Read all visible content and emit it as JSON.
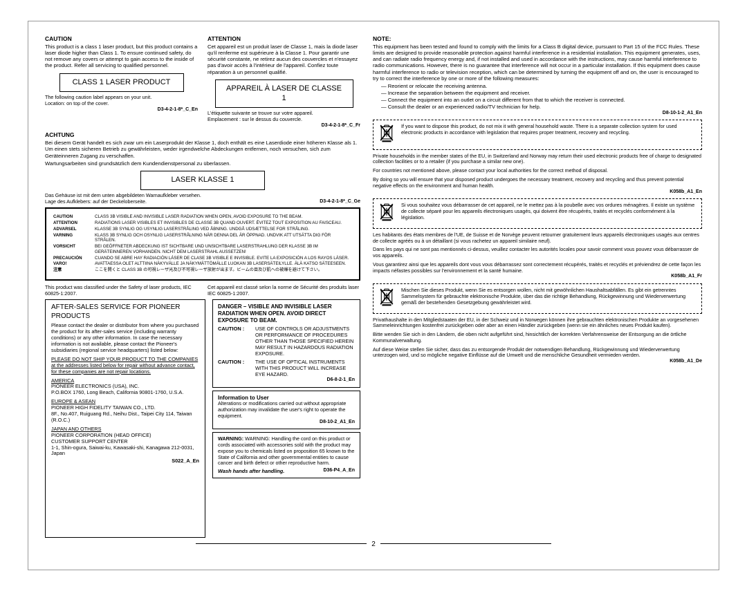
{
  "page_number": "2",
  "left": {
    "caution_en": {
      "title": "CAUTION",
      "body": "This product is a class 1 laser product, but this product contains a laser diode higher than Class 1. To ensure continued safety, do not remove any covers or attempt to gain access to the inside of the product. Refer all servicing to qualified personnel."
    },
    "attention_fr": {
      "title": "ATTENTION",
      "body": "Cet appareil est un produit laser de Classe 1, mais la diode laser qu'il renferme est supérieure à la Classe 1. Pour garantir une sécurité constante, ne retirez aucun des couvercles et n'essayez pas d'avoir accès à l'intérieur de l'appareil. Confiez toute réparation à un personnel qualifié."
    },
    "label_en": "CLASS 1 LASER PRODUCT",
    "label_fr": "APPAREIL À LASER DE CLASSE 1",
    "follow_en": "The following caution label appears on your unit.\nLocation: on top of the cover.",
    "follow_fr": "L'étiquette suivante se trouve sur votre appareil.\nEmplacement : sur le dessus du couvercle.",
    "code_en": "D3-4-2-1-8*_C_En",
    "code_fr": "D3-4-2-1-8*_C_Fr",
    "achtung": {
      "title": "ACHTUNG",
      "body": "Bei diesem Gerät handelt es sich zwar um ein Laserprodukt der Klasse 1, doch enthält es eine Laserdiode einer höheren Klasse als 1. Um einen stets sicheren Betrieb zu gewährleisten, weder irgendwelche Abdeckungen entfernen, noch versuchen, sich zum Geräteinneren Zugang zu verschaffen.",
      "body2": "Wartungsarbeiten sind grundsätzlich dem Kundendienstpersonal zu überlassen."
    },
    "label_ge": "LASER KLASSE 1",
    "follow_ge": "Das Gehäuse ist mit dem unten abgebildeten Warnaufkleber versehen.\nLage des Aufklebers: auf der Deckeloberseite.",
    "code_ge": "D3-4-2-1-8*_C_Ge",
    "multiwarn": [
      {
        "lbl": "CAUTION",
        "txt": "CLASS 3B VISIBLE AND INVISIBLE LASER RADIATION WHEN OPEN, AVOID EXPOSURE TO THE BEAM."
      },
      {
        "lbl": "ATTENTION",
        "txt": "RADIATIONS LASER VISIBLES ET INVISIBLES DE CLASSE 3B QUAND OUVERT. ÉVITEZ TOUT EXPOSITION AU FAISCEAU."
      },
      {
        "lbl": "ADVARSEL",
        "txt": "KLASSE 3B SYNLIG OG USYNLIG LASERSTRÅLING VED ÅBNING. UNDGÅ UDSÆTTELSE FOR STRÅLING."
      },
      {
        "lbl": "VARNING",
        "txt": "KLASS 3B SYNLIG OCH OSYNLIG LASERSTRÅLNING NÄR DENNA DEL ÄR ÖPPNAD. UNDVIK ATT UTSÄTTA DIG FÖR STRÅLEN."
      },
      {
        "lbl": "VORSICHT",
        "txt": "BEI GEÖFFNETER ABDECKUNG IST SICHTBARE UND UNSICHTBARE LASERSTRAHLUNG DER KLASSE 3B IM GERÄTEINNEREN VORHANDEN. NICHT DEM LASERSTRAHL AUSSETZEN!"
      },
      {
        "lbl": "PRECAUCIÓN",
        "txt": "CUANDO SE ABRE HAY RADIACIÓN LÁSER DE CLASE 3B VISIBLE E INVISIBLE. EVITE LA EXPOSICIÓN A LOS RAYOS LÁSER."
      },
      {
        "lbl": "VARO!",
        "txt": "AVATTAESSA OLET ALTTIINA NÄKYVÄLLE JA NÄKYMÄTTÖMÄLLE LUOKAN 3B LASERSÄTEILYLLE. ÄLÄ KATSO SÄTEESEEN."
      },
      {
        "lbl": "注意",
        "txt": "ここを開くと CLASS 3B の可視レーザ光及び不可視レーザ放射が出ます。ビームの目及び肌への被爆を避けて下さい。"
      }
    ],
    "iec_en": "This product was classified under the Safety of laser products, IEC 60825-1:2007.",
    "iec_fr": "Cet appareil est classé selon la norme de Sécurité des produits laser IEC 60825-1:2007.",
    "service": {
      "title": "AFTER-SALES SERVICE FOR PIONEER PRODUCTS",
      "intro": "Please contact the dealer or distributor from where you purchased the product for its after-sales service (including warranty conditions) or any other information. In case the necessary information is not available, please contact the Pioneer's subsidiaries (regional service headquarters) listed below:",
      "noship": "PLEASE DO NOT SHIP YOUR PRODUCT TO THE COMPANIES at the addresses listed below for repair without advance contact, for these companies are not repair locations.",
      "america_h": "AMERICA",
      "america": "PIONEER ELECTRONICS (USA), INC.\nP.O.BOX 1760, Long Beach, California 90801-1760, U.S.A.",
      "europe_h": "EUROPE & ASEAN",
      "europe": "PIONEER HIGH FIDELITY TAIWAN CO., LTD.\n8F., No.407, Ruiguang Rd., Neihu Dist., Taipei City 114, Taiwan (R.O.C.)",
      "japan_h": "JAPAN AND OTHERS",
      "japan": "PIONEER CORPORATION (HEAD OFFICE)\nCUSTOMER SUPPORT CENTER\n1-1, Shin-ogura, Saiwai-ku, Kawasaki-shi, Kanagawa 212-0031, Japan",
      "code": "S022_A_En"
    },
    "danger": {
      "title": "DANGER – VISIBLE AND INVISIBLE LASER RADIATION WHEN OPEN. AVOID DIRECT EXPOSURE TO BEAM.",
      "caution1_l": "CAUTION :",
      "caution1": "USE OF CONTROLS OR ADJUSTMENTS OR PERFORMANCE OF PROCEDURES OTHER THAN THOSE SPECIFIED HEREIN MAY RESULT IN HAZARDOUS RADIATION EXPOSURE.",
      "caution2_l": "CAUTION :",
      "caution2": "THE USE OF OPTICAL INSTRUMENTS WITH THIS PRODUCT WILL INCREASE EYE HAZARD.",
      "code1": "D6-8-2-1_En",
      "info_t": "Information to User",
      "info": "Alterations or modifications carried out without appropriate authorization may invalidate the user's right to operate the equipment.",
      "code2": "D8-10-2_A1_En",
      "warn": "WARNING: Handling the cord on this product or cords associated with accessories sold with the product may expose you to chemicals listed on proposition 65 known to the State of California and other governmental entities to cause cancer and birth defect or other reproductive harm.",
      "wash_l": "Wash hands after handling.",
      "code3": "D36-P4_A_En"
    }
  },
  "right": {
    "note": {
      "title": "NOTE:",
      "body": "This equipment has been tested and found to comply with the limits for a Class B digital device, pursuant to Part 15 of the FCC Rules. These limits are designed to provide reasonable protection against harmful interference in a residential installation. This equipment generates, uses, and can radiate radio frequency energy and, if not installed and used in accordance with the instructions, may cause harmful interference to radio communications. However, there is no guarantee that interference will not occur in a particular installation. If this equipment does cause harmful interference to radio or television reception, which can be determined by turning the equipment off and on, the user is encouraged to try to correct the interference by one or more of the following measures:",
      "items": [
        "Reorient or relocate the receiving antenna.",
        "Increase the separation between the equipment and receiver.",
        "Connect the equipment into an outlet on a circuit different from that to which the receiver is connected.",
        "Consult the dealer or an experienced radio/TV technician for help."
      ],
      "code": "D8-10-1-2_A1_En"
    },
    "weee_en": {
      "box": "If you want to dispose this product, do not mix it with general household waste. There is a separate collection system for used electronic products in accordance with legislation that requires proper treatment, recovery and recycling.",
      "p1": "Private households in the member states of the EU, in Switzerland and Norway may return their used electronic products free of charge to designated collection facilities or to a retailer (if you purchase a similar new one).",
      "p2": "For countries not mentioned above, please contact your local authorities for the correct method of disposal.",
      "p3": "By doing so you will ensure that your disposed product undergoes the necessary treatment, recovery and recycling and thus prevent potential negative effects on the environment and human health.",
      "code": "K058b_A1_En"
    },
    "weee_fr": {
      "box": "Si vous souhaitez vous débarrasser de cet appareil, ne le mettez pas à la poubelle avec vos ordures ménagères. Il existe un système de collecte séparé pour les appareils électroniques usagés, qui doivent être récupérés, traités et recyclés conformément à la législation.",
      "p1": "Les habitants des états membres de l'UE, de Suisse et de Norvège peuvent retourner gratuitement leurs appareils électroniques usagés aux centres de collecte agréés ou à un détaillant (si vous rachetez un appareil similaire neuf).",
      "p2": "Dans les pays qui ne sont pas mentionnés ci-dessus, veuillez contacter les autorités locales pour savoir comment vous pouvez vous débarrasser de vos appareils.",
      "p3": "Vous garantirez ainsi que les appareils dont vous vous débarrassez sont correctement récupérés, traités et recyclés et préviendrez de cette façon les impacts néfastes possibles sur l'environnement et la santé humaine.",
      "code": "K058b_A1_Fr"
    },
    "weee_de": {
      "box": "Mischen Sie dieses Produkt, wenn Sie es entsorgen wollen, nicht mit gewöhnlichen Haushaltsabfällen. Es gibt ein getrenntes Sammelsystem für gebrauchte elektronische Produkte, über das die richtige Behandlung, Rückgewinnung und Wiederverwertung gemäß der bestehenden Gesetzgebung gewährleistet wird.",
      "p1": "Privathaushalte in den Mitgliedstaaten der EU, in der Schweiz und in Norwegen können ihre gebrauchten elektronischen Produkte an vorgesehenen Sammeleinrichtungen kostenfrei zurückgeben oder aber an einen Händler zurückgeben (wenn sie ein ähnliches neues Produkt kaufen).",
      "p2": "Bitte wenden Sie sich in den Ländern, die oben nicht aufgeführt sind, hinsichtlich der korrekten Verfahrensweise der Entsorgung an die örtliche Kommunalverwaltung.",
      "p3": "Auf diese Weise stellen Sie sicher, dass das zu entsorgende Produkt der notwendigen Behandlung, Rückgewinnung und Wiederverwertung unterzogen wird, und so mögliche negative Einflüsse auf die Umwelt und die menschliche Gesundheit vermieden werden.",
      "code": "K058b_A1_De"
    }
  }
}
